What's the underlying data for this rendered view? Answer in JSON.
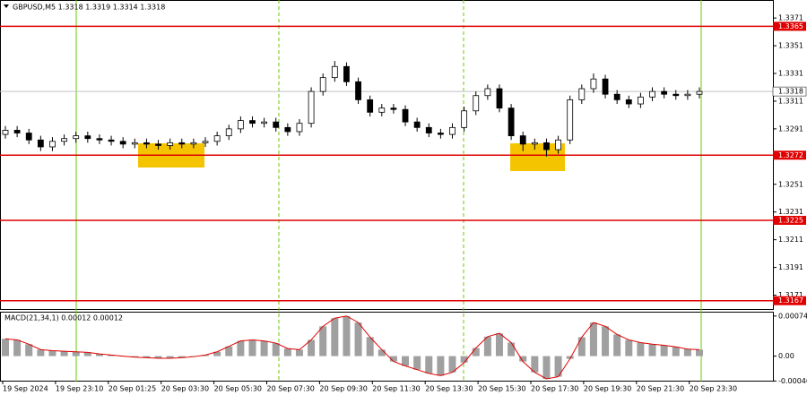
{
  "chart_data": {
    "type": "candlestick",
    "title": "GBPUSD,M5  1.3318 1.3319 1.3314 1.3318",
    "open": [
      1.3287,
      1.329,
      1.3288,
      1.3283,
      1.3278,
      1.3282,
      1.3284,
      1.3286,
      1.3284,
      1.3283,
      1.3282,
      1.328,
      1.3281,
      1.328,
      1.3279,
      1.3281,
      1.328,
      1.3281,
      1.3282,
      1.3286,
      1.3291,
      1.3297,
      1.3295,
      1.3296,
      1.3292,
      1.3289,
      1.3295,
      1.3318,
      1.3328,
      1.3336,
      1.3325,
      1.3312,
      1.3303,
      1.3306,
      1.3305,
      1.3296,
      1.3292,
      1.3288,
      1.3287,
      1.3292,
      1.3304,
      1.3315,
      1.332,
      1.3306,
      1.3286,
      1.328,
      1.3281,
      1.3276,
      1.3283,
      1.3312,
      1.332,
      1.3327,
      1.3316,
      1.3312,
      1.3309,
      1.3314,
      1.3318,
      1.3316,
      1.3315,
      1.3316
    ],
    "high": [
      1.3293,
      1.3293,
      1.3291,
      1.3286,
      1.3285,
      1.3287,
      1.3289,
      1.3289,
      1.3287,
      1.3286,
      1.3285,
      1.3284,
      1.3284,
      1.3283,
      1.3284,
      1.3284,
      1.3284,
      1.3285,
      1.3289,
      1.3294,
      1.33,
      1.33,
      1.3299,
      1.3299,
      1.3295,
      1.3298,
      1.3321,
      1.3331,
      1.334,
      1.3339,
      1.3328,
      1.3315,
      1.3309,
      1.3309,
      1.3308,
      1.3299,
      1.3295,
      1.3291,
      1.3295,
      1.3307,
      1.3318,
      1.3323,
      1.3323,
      1.3309,
      1.3289,
      1.3284,
      1.3284,
      1.3286,
      1.3315,
      1.3323,
      1.3331,
      1.333,
      1.3319,
      1.3315,
      1.3317,
      1.3321,
      1.3321,
      1.3319,
      1.3319,
      1.3321
    ],
    "low": [
      1.3284,
      1.3285,
      1.328,
      1.3275,
      1.3275,
      1.3279,
      1.3281,
      1.3281,
      1.328,
      1.3279,
      1.3277,
      1.3277,
      1.3277,
      1.3276,
      1.3276,
      1.3277,
      1.3277,
      1.3278,
      1.3279,
      1.3283,
      1.3288,
      1.3292,
      1.3292,
      1.3289,
      1.3286,
      1.3286,
      1.3292,
      1.3315,
      1.3325,
      1.3322,
      1.3309,
      1.33,
      1.33,
      1.3302,
      1.3293,
      1.3289,
      1.3285,
      1.3284,
      1.3284,
      1.3289,
      1.3301,
      1.3312,
      1.3303,
      1.3283,
      1.3275,
      1.3276,
      1.3271,
      1.3273,
      1.328,
      1.3309,
      1.3317,
      1.3313,
      1.3309,
      1.3306,
      1.3306,
      1.3311,
      1.3313,
      1.3312,
      1.3312,
      1.3313
    ],
    "close": [
      1.329,
      1.3288,
      1.3283,
      1.3278,
      1.3282,
      1.3284,
      1.3286,
      1.3284,
      1.3283,
      1.3282,
      1.328,
      1.3281,
      1.328,
      1.3279,
      1.3281,
      1.328,
      1.3281,
      1.3282,
      1.3286,
      1.3291,
      1.3297,
      1.3295,
      1.3296,
      1.3292,
      1.3289,
      1.3295,
      1.3318,
      1.3328,
      1.3336,
      1.3325,
      1.3312,
      1.3303,
      1.3306,
      1.3305,
      1.3296,
      1.3292,
      1.3288,
      1.3287,
      1.3292,
      1.3304,
      1.3315,
      1.332,
      1.3306,
      1.3286,
      1.328,
      1.3281,
      1.3276,
      1.3283,
      1.3312,
      1.332,
      1.3327,
      1.3316,
      1.3312,
      1.3309,
      1.3314,
      1.3318,
      1.3316,
      1.3315,
      1.3316,
      1.3318
    ],
    "ylim": [
      1.3161,
      1.3384
    ],
    "yticks": [
      1.3371,
      1.3351,
      1.3331,
      1.3311,
      1.3291,
      1.3251,
      1.3231,
      1.3211,
      1.3191,
      1.3171
    ],
    "levels": [
      1.3365,
      1.3272,
      1.3225,
      1.3167
    ],
    "level_color": "#e00000",
    "current_price": 1.3318,
    "x_labels": [
      "19 Sep 2024",
      "19 Sep 23:10",
      "20 Sep 01:25",
      "20 Sep 03:30",
      "20 Sep 05:30",
      "20 Sep 07:30",
      "20 Sep 09:30",
      "20 Sep 11:30",
      "20 Sep 13:30",
      "20 Sep 15:30",
      "20 Sep 17:30",
      "20 Sep 19:30",
      "20 Sep 21:30",
      "20 Sep 23:30"
    ],
    "macd": {
      "label": "MACD(21,34,1) 0.00012 0.00012",
      "values": [
        0.00032,
        0.0003,
        0.00022,
        0.00012,
        0.0001,
        9e-05,
        8e-05,
        7e-05,
        4e-05,
        2e-05,
        0,
        -2e-05,
        -3e-05,
        -4e-05,
        -4e-05,
        -3e-05,
        -1e-05,
        2e-05,
        8e-05,
        0.00018,
        0.00028,
        0.0003,
        0.00028,
        0.00024,
        0.00014,
        0.00012,
        0.0003,
        0.00055,
        0.0007,
        0.00074,
        0.00062,
        0.00035,
        0.00012,
        -0.0001,
        -0.00018,
        -0.00025,
        -0.00032,
        -0.00036,
        -0.0003,
        -0.00012,
        0.00015,
        0.00036,
        0.00042,
        0.00025,
        -0.0001,
        -0.0003,
        -0.00042,
        -0.00038,
        -5e-05,
        0.00035,
        0.00062,
        0.00055,
        0.0004,
        0.0003,
        0.00025,
        0.00022,
        0.0002,
        0.00017,
        0.00013,
        0.00012
      ],
      "color": "#a0a0a0",
      "signal_color": "#e00000",
      "ylim": [
        -0.00047,
        0.00082
      ],
      "yticks": [
        0.00074,
        {
          "value": 0,
          "label": "0.00"
        },
        -0.00046
      ]
    }
  }
}
